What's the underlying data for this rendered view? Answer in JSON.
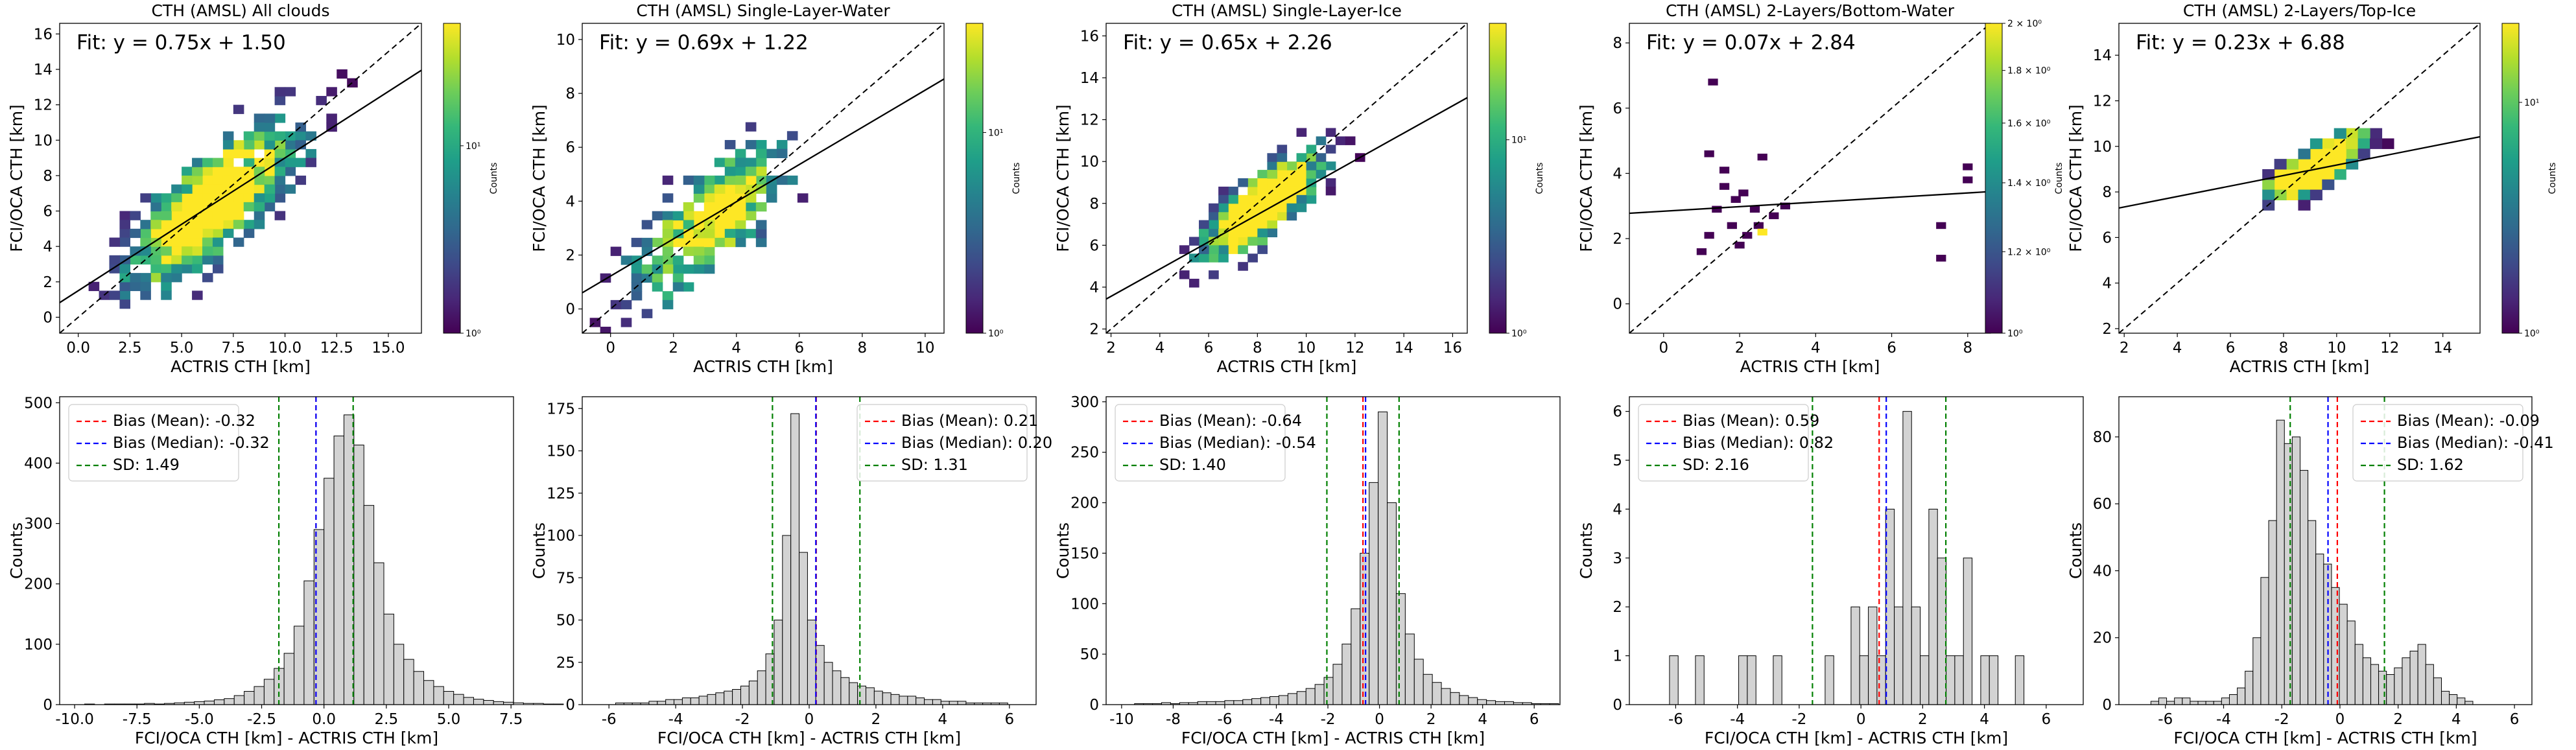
{
  "figure": {
    "colorbar_label": "Counts",
    "colormap": "viridis"
  },
  "chart_data": [
    {
      "type": "heatmap",
      "title": "CTH (AMSL) All clouds",
      "xlabel": "ACTRIS CTH [km]",
      "ylabel": "FCI/OCA CTH [km]",
      "xlim": [
        -0.9,
        16.6
      ],
      "ylim": [
        -0.9,
        16.6
      ],
      "xticks": [
        "0.0",
        "2.5",
        "5.0",
        "7.5",
        "10.0",
        "12.5",
        "15.0"
      ],
      "yticks": [
        "0",
        "2",
        "4",
        "6",
        "8",
        "10",
        "12",
        "14",
        "16"
      ],
      "fit": {
        "label": "Fit: y = 0.75x + 1.50",
        "slope": 0.75,
        "intercept": 1.5
      },
      "one_to_one_line": true,
      "cloud": {
        "center": [
          6.5,
          6.3
        ],
        "spread": [
          3.6,
          3.0
        ],
        "n": 720,
        "bin": 0.5
      },
      "colorbar": {
        "scale": "log",
        "min": 1,
        "max": 45,
        "ticks": [
          "10⁰",
          "10¹"
        ]
      }
    },
    {
      "type": "heatmap",
      "title": "CTH (AMSL) Single-Layer-Water",
      "xlabel": "ACTRIS CTH [km]",
      "ylabel": "FCI/OCA CTH [km]",
      "xlim": [
        -0.9,
        10.6
      ],
      "ylim": [
        -0.9,
        10.6
      ],
      "xticks": [
        "0",
        "2",
        "4",
        "6",
        "8",
        "10"
      ],
      "yticks": [
        "0",
        "2",
        "4",
        "6",
        "8",
        "10"
      ],
      "fit": {
        "label": "Fit: y = 0.69x + 1.22",
        "slope": 0.69,
        "intercept": 1.22
      },
      "one_to_one_line": true,
      "cloud": {
        "center": [
          3.2,
          3.4
        ],
        "spread": [
          2.2,
          1.9
        ],
        "n": 320,
        "bin": 0.33
      },
      "colorbar": {
        "scale": "log",
        "min": 1,
        "max": 35,
        "ticks": [
          "10⁰",
          "10¹"
        ]
      }
    },
    {
      "type": "heatmap",
      "title": "CTH (AMSL) Single-Layer-Ice",
      "xlabel": "ACTRIS CTH [km]",
      "ylabel": "FCI/OCA CTH [km]",
      "xlim": [
        1.8,
        16.6
      ],
      "ylim": [
        1.8,
        16.6
      ],
      "xticks": [
        "2",
        "4",
        "6",
        "8",
        "10",
        "12",
        "14",
        "16"
      ],
      "yticks": [
        "2",
        "4",
        "6",
        "8",
        "10",
        "12",
        "14",
        "16"
      ],
      "fit": {
        "label": "Fit: y = 0.65x + 2.26",
        "slope": 0.65,
        "intercept": 2.26
      },
      "one_to_one_line": true,
      "cloud": {
        "center": [
          8.2,
          7.6
        ],
        "spread": [
          2.1,
          1.6
        ],
        "n": 620,
        "bin": 0.4
      },
      "colorbar": {
        "scale": "log",
        "min": 1,
        "max": 40,
        "ticks": [
          "10⁰",
          "10¹"
        ]
      }
    },
    {
      "type": "heatmap",
      "title": "CTH (AMSL) 2-Layers/Bottom-Water",
      "xlabel": "ACTRIS CTH [km]",
      "ylabel": "FCI/OCA CTH [km]",
      "xlim": [
        -0.9,
        8.6
      ],
      "ylim": [
        -0.9,
        8.6
      ],
      "xticks": [
        "0",
        "2",
        "4",
        "6",
        "8"
      ],
      "yticks": [
        "0",
        "2",
        "4",
        "6",
        "8"
      ],
      "fit": {
        "label": "Fit: y = 0.07x + 2.84",
        "slope": 0.07,
        "intercept": 2.84
      },
      "one_to_one_line": true,
      "points": [
        [
          1.3,
          6.8
        ],
        [
          1.2,
          4.6
        ],
        [
          1.6,
          4.1
        ],
        [
          1.6,
          3.6
        ],
        [
          1.9,
          3.2
        ],
        [
          1.4,
          2.9
        ],
        [
          1.2,
          2.1
        ],
        [
          2.1,
          3.4
        ],
        [
          2.5,
          2.4
        ],
        [
          2.9,
          2.7
        ],
        [
          3.2,
          3.0
        ],
        [
          2.6,
          4.5
        ],
        [
          2.4,
          2.9
        ],
        [
          1.8,
          2.4
        ],
        [
          7.3,
          1.4
        ],
        [
          7.3,
          2.4
        ],
        [
          8.0,
          4.2
        ],
        [
          8.0,
          3.8
        ],
        [
          1.0,
          1.6
        ],
        [
          2.2,
          2.1
        ],
        [
          2.0,
          1.8
        ]
      ],
      "highlight": [
        2.6,
        2.2
      ],
      "colorbar": {
        "scale": "log",
        "min": 1,
        "max": 2,
        "ticks": [
          "10⁰",
          "1.2 × 10⁰",
          "1.4 × 10⁰",
          "1.6 × 10⁰",
          "1.8 × 10⁰",
          "2 × 10⁰"
        ]
      }
    },
    {
      "type": "heatmap",
      "title": "CTH (AMSL) 2-Layers/Top-Ice",
      "xlabel": "ACTRIS CTH [km]",
      "ylabel": "FCI/OCA CTH [km]",
      "xlim": [
        1.8,
        15.4
      ],
      "ylim": [
        1.8,
        15.4
      ],
      "xticks": [
        "2",
        "4",
        "6",
        "8",
        "10",
        "12",
        "14"
      ],
      "yticks": [
        "2",
        "4",
        "6",
        "8",
        "10",
        "12",
        "14"
      ],
      "fit": {
        "label": "Fit: y = 0.23x + 6.88",
        "slope": 0.23,
        "intercept": 6.88
      },
      "one_to_one_line": true,
      "cloud": {
        "center": [
          9.2,
          8.9
        ],
        "spread": [
          1.6,
          0.95
        ],
        "n": 320,
        "bin": 0.45
      },
      "colorbar": {
        "scale": "log",
        "min": 1,
        "max": 22,
        "ticks": [
          "10⁰",
          "10¹"
        ]
      }
    },
    {
      "type": "bar",
      "subtype": "histogram",
      "xlabel": "FCI/OCA CTH [km] - ACTRIS CTH [km]",
      "ylabel": "Counts",
      "xlim": [
        -10.6,
        7.6
      ],
      "ylim": [
        0,
        510
      ],
      "xticks": [
        "-10.0",
        "-7.5",
        "-5.0",
        "-2.5",
        "0.0",
        "2.5",
        "5.0",
        "7.5"
      ],
      "yticks": [
        "0",
        "100",
        "200",
        "300",
        "400",
        "500"
      ],
      "bin_start": -9.6,
      "bin_width": 0.4,
      "counts": [
        1,
        0,
        1,
        1,
        1,
        1,
        2,
        1,
        2,
        3,
        4,
        5,
        6,
        8,
        10,
        15,
        22,
        30,
        42,
        60,
        85,
        130,
        205,
        290,
        375,
        445,
        480,
        430,
        330,
        235,
        150,
        100,
        75,
        55,
        40,
        30,
        22,
        17,
        12,
        9,
        7,
        5,
        4,
        3,
        2,
        2,
        1,
        1
      ],
      "mean": -0.32,
      "median": -0.32,
      "sd": 1.49,
      "legend_position": "upper left",
      "legend": [
        "Bias (Mean): -0.32",
        "Bias (Median): -0.32",
        "SD: 1.49"
      ]
    },
    {
      "type": "bar",
      "subtype": "histogram",
      "xlabel": "FCI/OCA CTH [km] - ACTRIS CTH [km]",
      "ylabel": "Counts",
      "xlim": [
        -6.8,
        6.8
      ],
      "ylim": [
        0,
        182
      ],
      "xticks": [
        "-6",
        "-4",
        "-2",
        "0",
        "2",
        "4",
        "6"
      ],
      "yticks": [
        "0",
        "25",
        "50",
        "75",
        "100",
        "125",
        "150",
        "175"
      ],
      "bin_start": -5.8,
      "bin_width": 0.25,
      "counts": [
        1,
        1,
        1,
        1,
        2,
        2,
        3,
        3,
        4,
        4,
        5,
        6,
        7,
        8,
        9,
        11,
        14,
        20,
        30,
        50,
        100,
        172,
        90,
        50,
        35,
        25,
        20,
        16,
        13,
        11,
        10,
        8,
        7,
        6,
        5,
        5,
        4,
        3,
        3,
        2,
        2,
        2,
        1,
        1,
        1,
        1,
        1
      ],
      "mean": 0.21,
      "median": 0.2,
      "sd": 1.31,
      "legend_position": "upper right",
      "legend": [
        "Bias (Mean): 0.21",
        "Bias (Median): 0.20",
        "SD: 1.31"
      ]
    },
    {
      "type": "bar",
      "subtype": "histogram",
      "xlabel": "FCI/OCA CTH [km] - ACTRIS CTH [km]",
      "ylabel": "Counts",
      "xlim": [
        -10.6,
        7.0
      ],
      "ylim": [
        0,
        305
      ],
      "xticks": [
        "-10",
        "-8",
        "-6",
        "-4",
        "-2",
        "0",
        "2",
        "4",
        "6"
      ],
      "yticks": [
        "0",
        "50",
        "100",
        "150",
        "200",
        "250",
        "300"
      ],
      "bin_start": -9.5,
      "bin_width": 0.35,
      "counts": [
        1,
        1,
        1,
        2,
        1,
        2,
        2,
        3,
        3,
        3,
        4,
        4,
        5,
        6,
        7,
        8,
        9,
        11,
        13,
        16,
        20,
        27,
        40,
        60,
        95,
        150,
        220,
        290,
        200,
        110,
        70,
        45,
        30,
        22,
        16,
        12,
        9,
        7,
        5,
        4,
        3,
        3,
        2,
        2,
        1,
        1,
        1
      ],
      "mean": -0.64,
      "median": -0.54,
      "sd": 1.4,
      "legend_position": "upper left",
      "legend": [
        "Bias (Mean): -0.64",
        "Bias (Median): -0.54",
        "SD: 1.40"
      ]
    },
    {
      "type": "bar",
      "subtype": "histogram",
      "xlabel": "FCI/OCA CTH [km] - ACTRIS CTH [km]",
      "ylabel": "Counts",
      "xlim": [
        -7.5,
        7.2
      ],
      "ylim": [
        0,
        6.3
      ],
      "xticks": [
        "-6",
        "-4",
        "-2",
        "0",
        "2",
        "4",
        "6"
      ],
      "yticks": [
        "0",
        "1",
        "2",
        "3",
        "4",
        "5",
        "6"
      ],
      "bin_start": -6.2,
      "bin_width": 0.28,
      "counts": [
        1,
        0,
        0,
        1,
        0,
        0,
        0,
        0,
        1,
        1,
        0,
        0,
        1,
        0,
        0,
        0,
        0,
        0,
        1,
        0,
        0,
        2,
        1,
        2,
        1,
        4,
        2,
        6,
        2,
        1,
        4,
        3,
        1,
        1,
        3,
        0,
        1,
        1,
        0,
        0,
        1
      ],
      "mean": 0.59,
      "median": 0.82,
      "sd": 2.16,
      "legend_position": "upper left",
      "legend": [
        "Bias (Mean): 0.59",
        "Bias (Median): 0.82",
        "SD: 2.16"
      ]
    },
    {
      "type": "bar",
      "subtype": "histogram",
      "xlabel": "FCI/OCA CTH [km] - ACTRIS CTH [km]",
      "ylabel": "Counts",
      "xlim": [
        -7.6,
        6.6
      ],
      "ylim": [
        0,
        92
      ],
      "xticks": [
        "-6",
        "-4",
        "-2",
        "0",
        "2",
        "4",
        "6"
      ],
      "yticks": [
        "0",
        "20",
        "40",
        "60",
        "80"
      ],
      "bin_start": -6.5,
      "bin_width": 0.27,
      "counts": [
        1,
        2,
        1,
        2,
        2,
        1,
        1,
        1,
        1,
        2,
        3,
        5,
        10,
        20,
        38,
        55,
        85,
        78,
        80,
        70,
        55,
        45,
        42,
        35,
        30,
        25,
        18,
        14,
        12,
        10,
        9,
        11,
        14,
        16,
        18,
        12,
        8,
        4,
        3,
        2,
        1
      ],
      "mean": -0.09,
      "median": -0.41,
      "sd": 1.62,
      "legend_position": "upper right",
      "legend": [
        "Bias (Mean): -0.09",
        "Bias (Median): -0.41",
        "SD: 1.62"
      ]
    }
  ]
}
